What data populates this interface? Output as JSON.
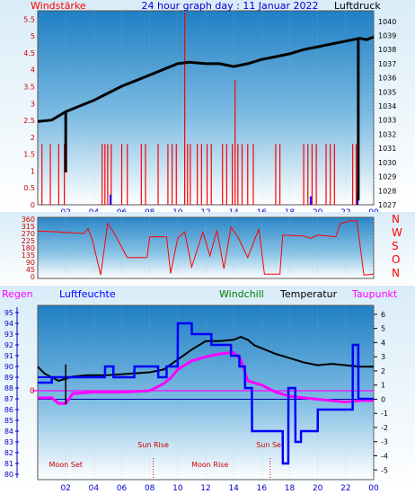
{
  "colors": {
    "wind": "#ff0000",
    "pressure": "#000000",
    "humidity": "#0000ff",
    "temperature": "#000000",
    "dewpoint": "#ff00ff",
    "rain": "#0000ff",
    "text_red": "#ff0000",
    "text_blue": "#0000ff",
    "text_green": "#008000",
    "event_text": "#cc0000",
    "axis_blue": "#0000cc"
  },
  "chart_data": [
    {
      "type": "line",
      "title": "24 hour graph day : 11 Januar 2022",
      "left_axis_label": "Windstärke",
      "right_axis_label": "Luftdruck",
      "left_ticks": [
        "0",
        "0.5",
        "1",
        "1.5",
        "2",
        "2.5",
        "3",
        "3.5",
        "4",
        "4.5",
        "5",
        "5.5"
      ],
      "right_ticks": [
        "1027",
        "1028",
        "1029",
        "1030",
        "1031",
        "1032",
        "1033",
        "1034",
        "1035",
        "1036",
        "1037",
        "1038",
        "1039",
        "1040"
      ],
      "x_ticks": [
        "02",
        "04",
        "06",
        "08",
        "10",
        "12",
        "14",
        "16",
        "18",
        "20",
        "22",
        "00"
      ],
      "left_range": [
        0,
        5.75
      ],
      "right_range": [
        1027,
        1040.75
      ],
      "x_range": [
        0,
        24
      ],
      "pressure": {
        "x": [
          0,
          1,
          2,
          3,
          4,
          5,
          6,
          7,
          8,
          9,
          10,
          10.8,
          12,
          13,
          14,
          15,
          16,
          17,
          18,
          19,
          20,
          21,
          22,
          23,
          23.5,
          24
        ],
        "y": [
          1032.9,
          1033.0,
          1033.6,
          1034.0,
          1034.4,
          1034.9,
          1035.4,
          1035.8,
          1036.2,
          1036.6,
          1037.0,
          1037.1,
          1037.0,
          1037.0,
          1036.8,
          1037.0,
          1037.3,
          1037.5,
          1037.7,
          1038.0,
          1038.2,
          1038.4,
          1038.6,
          1038.8,
          1038.7,
          1038.9
        ]
      },
      "pressure_dips": [
        {
          "x": 2.0,
          "from": 1033.6,
          "to": 1029.3
        },
        {
          "x": 22.9,
          "from": 1038.8,
          "to": 1027.3
        }
      ],
      "wind_gusts": [
        {
          "x": 0.3,
          "v": 1.8
        },
        {
          "x": 0.9,
          "v": 1.8
        },
        {
          "x": 1.5,
          "v": 1.8
        },
        {
          "x": 1.9,
          "v": 1.8
        },
        {
          "x": 4.6,
          "v": 1.8
        },
        {
          "x": 4.8,
          "v": 1.8
        },
        {
          "x": 5.0,
          "v": 1.8
        },
        {
          "x": 5.25,
          "v": 1.8
        },
        {
          "x": 6.0,
          "v": 1.8
        },
        {
          "x": 6.4,
          "v": 1.8
        },
        {
          "x": 7.4,
          "v": 1.8
        },
        {
          "x": 7.7,
          "v": 1.8
        },
        {
          "x": 8.6,
          "v": 1.8
        },
        {
          "x": 9.3,
          "v": 1.8
        },
        {
          "x": 9.6,
          "v": 1.8
        },
        {
          "x": 9.9,
          "v": 1.8
        },
        {
          "x": 10.5,
          "v": 5.7
        },
        {
          "x": 10.7,
          "v": 1.8
        },
        {
          "x": 10.9,
          "v": 1.8
        },
        {
          "x": 11.4,
          "v": 1.8
        },
        {
          "x": 11.7,
          "v": 1.8
        },
        {
          "x": 12.1,
          "v": 1.8
        },
        {
          "x": 12.4,
          "v": 1.8
        },
        {
          "x": 13.2,
          "v": 1.8
        },
        {
          "x": 13.5,
          "v": 1.8
        },
        {
          "x": 13.9,
          "v": 1.8
        },
        {
          "x": 14.1,
          "v": 3.7
        },
        {
          "x": 14.3,
          "v": 1.8
        },
        {
          "x": 14.6,
          "v": 1.8
        },
        {
          "x": 15.0,
          "v": 1.8
        },
        {
          "x": 15.4,
          "v": 1.8
        },
        {
          "x": 17.0,
          "v": 1.8
        },
        {
          "x": 17.3,
          "v": 1.8
        },
        {
          "x": 19.0,
          "v": 1.8
        },
        {
          "x": 19.3,
          "v": 1.8
        },
        {
          "x": 19.6,
          "v": 1.8
        },
        {
          "x": 19.9,
          "v": 1.8
        },
        {
          "x": 20.6,
          "v": 1.8
        },
        {
          "x": 20.9,
          "v": 1.8
        },
        {
          "x": 21.2,
          "v": 1.8
        },
        {
          "x": 22.5,
          "v": 1.8
        },
        {
          "x": 22.75,
          "v": 1.8
        }
      ],
      "blue_markers": [
        {
          "x": 5.2,
          "v": 0.3
        },
        {
          "x": 19.5,
          "v": 0.25
        },
        {
          "x": 22.85,
          "v": 0.35
        }
      ]
    },
    {
      "type": "line",
      "title": "",
      "left_ticks": [
        "0",
        "45",
        "90",
        "135",
        "180",
        "225",
        "270",
        "315",
        "360"
      ],
      "right_labels": [
        "N",
        "W",
        "S",
        "O",
        "N"
      ],
      "y_range": [
        0,
        360
      ],
      "x_range": [
        0,
        24
      ],
      "direction": {
        "x": [
          0,
          1.5,
          3.3,
          3.6,
          3.9,
          4.5,
          5.0,
          5.6,
          6.4,
          7.8,
          8.0,
          9.2,
          9.5,
          10.0,
          10.5,
          11.0,
          11.8,
          12.3,
          12.8,
          13.3,
          13.8,
          14.3,
          15.0,
          15.8,
          16.2,
          17.3,
          17.5,
          19.0,
          19.5,
          20.0,
          21.3,
          21.6,
          22.3,
          22.8,
          23.3,
          24
        ],
        "y": [
          285,
          280,
          270,
          300,
          230,
          10,
          335,
          250,
          120,
          120,
          250,
          250,
          20,
          240,
          280,
          60,
          280,
          130,
          290,
          50,
          310,
          250,
          120,
          300,
          15,
          15,
          260,
          255,
          240,
          260,
          250,
          330,
          350,
          350,
          10,
          15
        ]
      }
    },
    {
      "type": "line",
      "left_axis_label": "Regen",
      "humidity_label": "Luftfeuchte",
      "windchill_label": "Windchill",
      "temperature_label": "Temperatur",
      "dewpoint_label": "Taupunkt",
      "humidity_ticks": [
        "80",
        "81",
        "82",
        "83",
        "84",
        "85",
        "86",
        "87",
        "88",
        "89",
        "90",
        "91",
        "92",
        "93",
        "94",
        "95"
      ],
      "temp_ticks": [
        "-5",
        "-4",
        "-3",
        "-2",
        "-1",
        "0",
        "1",
        "2",
        "3",
        "4",
        "5",
        "6"
      ],
      "rain_tick": "0",
      "x_ticks": [
        "02",
        "04",
        "06",
        "08",
        "10",
        "12",
        "14",
        "16",
        "18",
        "20",
        "22",
        "00"
      ],
      "humidity_range": [
        80,
        95.5
      ],
      "temp_range": [
        -5.3,
        6.5
      ],
      "x_range": [
        0,
        24
      ],
      "temperature": {
        "x": [
          0,
          0.5,
          1.5,
          2.5,
          3.5,
          5,
          6.5,
          8,
          9,
          10,
          11,
          12,
          13,
          14,
          14.5,
          15,
          15.5,
          16,
          17,
          18,
          19,
          20,
          21,
          22,
          23,
          24
        ],
        "y": [
          2.3,
          1.8,
          1.3,
          1.6,
          1.7,
          1.7,
          1.8,
          1.9,
          2.1,
          2.8,
          3.5,
          4.1,
          4.1,
          4.2,
          4.4,
          4.2,
          3.8,
          3.6,
          3.2,
          2.9,
          2.6,
          2.4,
          2.5,
          2.4,
          2.3,
          2.3
        ]
      },
      "dewpoint": {
        "x": [
          0,
          1,
          1.5,
          2,
          2.5,
          4,
          6,
          8,
          9,
          9.5,
          10,
          11,
          12,
          13,
          14,
          14.5,
          15,
          16,
          17,
          18,
          19,
          20,
          22,
          23,
          24
        ],
        "y": [
          0.1,
          0.1,
          -0.3,
          -0.3,
          0.4,
          0.5,
          0.5,
          0.6,
          1.1,
          1.5,
          2.1,
          2.7,
          3.0,
          3.2,
          3.3,
          2.8,
          1.3,
          1.0,
          0.5,
          0.2,
          0.1,
          0.0,
          -0.2,
          -0.1,
          -0.1
        ]
      },
      "humidity": {
        "x": [
          0,
          1,
          1.01,
          4.8,
          4.81,
          5.4,
          5.41,
          6.9,
          6.91,
          8.6,
          8.61,
          9.2,
          9.21,
          10.0,
          10.01,
          11.0,
          11.01,
          12.4,
          12.41,
          13.8,
          13.81,
          14.4,
          14.41,
          14.8,
          14.81,
          15.3,
          15.31,
          17.5,
          17.51,
          17.9,
          17.91,
          18.4,
          18.41,
          18.8,
          18.81,
          20.0,
          20.01,
          22.5,
          22.51,
          22.9,
          22.91,
          24
        ],
        "y": [
          88.5,
          88.5,
          89.0,
          89.0,
          90.0,
          90.0,
          89.0,
          89.0,
          90.0,
          90.0,
          89.0,
          89.0,
          90.0,
          90.0,
          94.0,
          94.0,
          93.0,
          93.0,
          92.0,
          92.0,
          91.0,
          91.0,
          90.0,
          90.0,
          88.0,
          88.0,
          84.0,
          84.0,
          81.0,
          81.0,
          88.0,
          88.0,
          83.0,
          83.0,
          84.0,
          84.0,
          86.0,
          86.0,
          92.0,
          92.0,
          87.0,
          87.0
        ]
      },
      "humidity_line_left": {
        "x0": 0,
        "x1": 2.0,
        "y": 89.0
      },
      "rain_spike": {
        "x": 2.0,
        "from": 86.5,
        "to": 90.2
      },
      "reference_lines": [
        {
          "name": "dewpoint-zero-line",
          "temp": 0.6
        },
        {
          "name": "temp-zero-line",
          "temp": 0.0
        }
      ],
      "events": [
        {
          "label": "Moon Set",
          "x": 2.0
        },
        {
          "label": "Sun Rise",
          "x": 8.25
        },
        {
          "label": "Moon Rise",
          "x": 12.3
        },
        {
          "label": "Sun Set",
          "x": 16.6
        }
      ]
    }
  ]
}
